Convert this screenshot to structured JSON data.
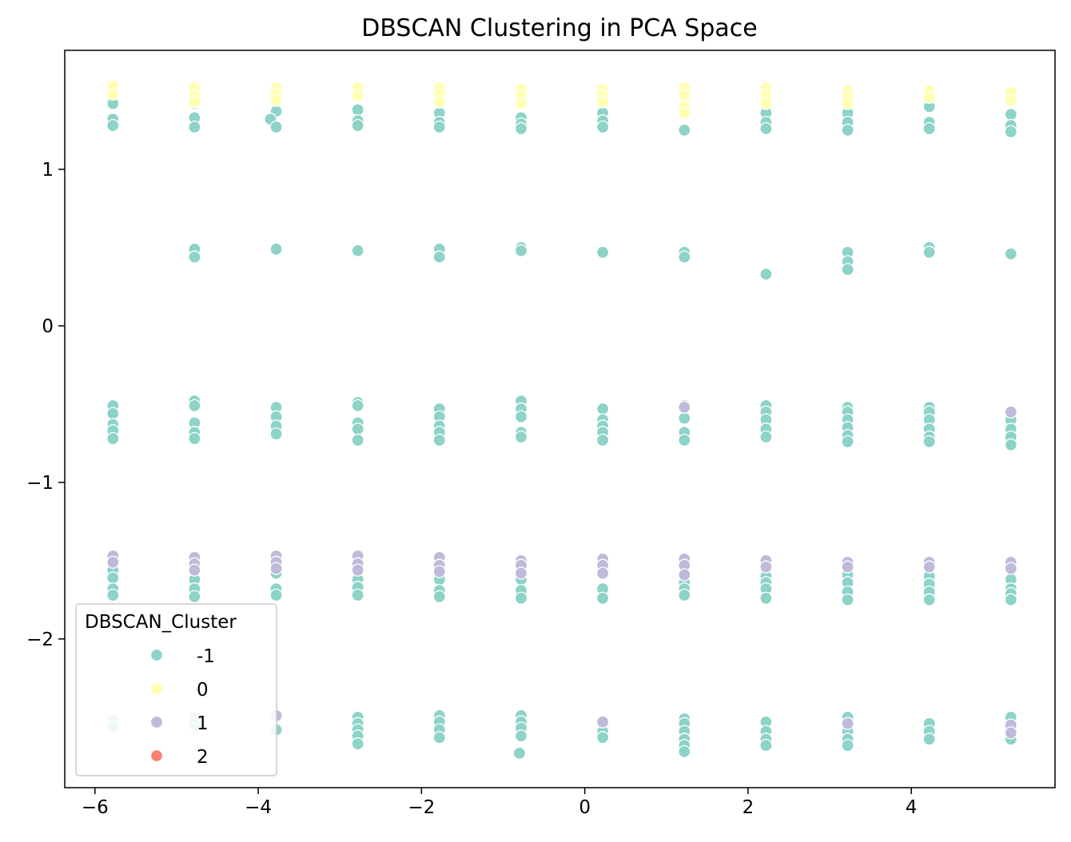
{
  "chart_data": {
    "type": "scatter",
    "title": "DBSCAN Clustering in PCA Space",
    "xlabel": "",
    "ylabel": "",
    "xlim": [
      -6.37,
      5.76
    ],
    "ylim": [
      -2.95,
      1.76
    ],
    "x_ticks": [
      -6,
      -4,
      -2,
      0,
      2,
      4
    ],
    "x_tick_labels": [
      "−6",
      "−4",
      "−2",
      "0",
      "2",
      "4"
    ],
    "y_ticks": [
      -2,
      -1,
      0,
      1
    ],
    "y_tick_labels": [
      "−2",
      "−1",
      "0",
      "1"
    ],
    "grid": false,
    "legend": {
      "title": "DBSCAN_Cluster",
      "placement": "lower-left",
      "entries": [
        {
          "label": "-1",
          "color": "#8dd3c7"
        },
        {
          "label": "0",
          "color": "#ffffb3"
        },
        {
          "label": "1",
          "color": "#bebada"
        },
        {
          "label": "2",
          "color": "#fb8072"
        }
      ]
    },
    "series": [
      {
        "cluster": "-1",
        "color": "#8dd3c7",
        "points": [
          [
            -5.78,
            1.42
          ],
          [
            -5.78,
            1.32
          ],
          [
            -5.78,
            1.28
          ],
          [
            -4.78,
            1.42
          ],
          [
            -4.78,
            1.33
          ],
          [
            -4.78,
            1.27
          ],
          [
            -3.78,
            1.37
          ],
          [
            -3.85,
            1.32
          ],
          [
            -3.78,
            1.27
          ],
          [
            -2.78,
            1.38
          ],
          [
            -2.78,
            1.31
          ],
          [
            -2.78,
            1.28
          ],
          [
            -1.78,
            1.36
          ],
          [
            -1.78,
            1.3
          ],
          [
            -1.78,
            1.27
          ],
          [
            -0.78,
            1.33
          ],
          [
            -0.78,
            1.29
          ],
          [
            -0.78,
            1.26
          ],
          [
            0.22,
            1.36
          ],
          [
            0.22,
            1.31
          ],
          [
            0.22,
            1.27
          ],
          [
            1.22,
            1.25
          ],
          [
            2.22,
            1.36
          ],
          [
            2.22,
            1.3
          ],
          [
            2.22,
            1.26
          ],
          [
            3.22,
            1.36
          ],
          [
            3.22,
            1.3
          ],
          [
            3.22,
            1.25
          ],
          [
            4.22,
            1.4
          ],
          [
            4.22,
            1.3
          ],
          [
            4.22,
            1.26
          ],
          [
            5.22,
            1.35
          ],
          [
            5.22,
            1.28
          ],
          [
            5.22,
            1.24
          ],
          [
            -4.78,
            0.49
          ],
          [
            -4.78,
            0.44
          ],
          [
            -3.78,
            0.49
          ],
          [
            -2.78,
            0.48
          ],
          [
            -1.78,
            0.49
          ],
          [
            -1.78,
            0.44
          ],
          [
            -0.78,
            0.5
          ],
          [
            -0.78,
            0.48
          ],
          [
            0.22,
            0.47
          ],
          [
            1.22,
            0.47
          ],
          [
            1.22,
            0.44
          ],
          [
            2.22,
            0.33
          ],
          [
            3.22,
            0.47
          ],
          [
            3.22,
            0.41
          ],
          [
            3.22,
            0.36
          ],
          [
            4.22,
            0.5
          ],
          [
            4.22,
            0.47
          ],
          [
            5.22,
            0.46
          ],
          [
            -5.78,
            -0.51
          ],
          [
            -5.78,
            -0.56
          ],
          [
            -5.78,
            -0.63
          ],
          [
            -5.78,
            -0.67
          ],
          [
            -5.78,
            -0.72
          ],
          [
            -4.78,
            -0.48
          ],
          [
            -4.78,
            -0.51
          ],
          [
            -4.78,
            -0.62
          ],
          [
            -4.78,
            -0.68
          ],
          [
            -4.78,
            -0.72
          ],
          [
            -3.78,
            -0.52
          ],
          [
            -3.78,
            -0.58
          ],
          [
            -3.78,
            -0.64
          ],
          [
            -3.78,
            -0.69
          ],
          [
            -2.78,
            -0.49
          ],
          [
            -2.78,
            -0.51
          ],
          [
            -2.78,
            -0.62
          ],
          [
            -2.78,
            -0.66
          ],
          [
            -2.78,
            -0.73
          ],
          [
            -1.78,
            -0.53
          ],
          [
            -1.78,
            -0.58
          ],
          [
            -1.78,
            -0.64
          ],
          [
            -1.78,
            -0.68
          ],
          [
            -1.78,
            -0.73
          ],
          [
            -0.78,
            -0.48
          ],
          [
            -0.78,
            -0.53
          ],
          [
            -0.78,
            -0.58
          ],
          [
            -0.78,
            -0.68
          ],
          [
            -0.78,
            -0.71
          ],
          [
            0.22,
            -0.53
          ],
          [
            0.22,
            -0.6
          ],
          [
            0.22,
            -0.64
          ],
          [
            0.22,
            -0.68
          ],
          [
            0.22,
            -0.73
          ],
          [
            1.22,
            -0.51
          ],
          [
            1.22,
            -0.59
          ],
          [
            1.22,
            -0.68
          ],
          [
            1.22,
            -0.73
          ],
          [
            2.22,
            -0.51
          ],
          [
            2.22,
            -0.55
          ],
          [
            2.22,
            -0.6
          ],
          [
            2.22,
            -0.66
          ],
          [
            2.22,
            -0.71
          ],
          [
            3.22,
            -0.52
          ],
          [
            3.22,
            -0.55
          ],
          [
            3.22,
            -0.6
          ],
          [
            3.22,
            -0.65
          ],
          [
            3.22,
            -0.7
          ],
          [
            3.22,
            -0.74
          ],
          [
            4.22,
            -0.52
          ],
          [
            4.22,
            -0.55
          ],
          [
            4.22,
            -0.6
          ],
          [
            4.22,
            -0.66
          ],
          [
            4.22,
            -0.71
          ],
          [
            4.22,
            -0.74
          ],
          [
            5.22,
            -0.6
          ],
          [
            5.22,
            -0.66
          ],
          [
            5.22,
            -0.71
          ],
          [
            5.22,
            -0.76
          ],
          [
            -5.78,
            -1.56
          ],
          [
            -5.78,
            -1.61
          ],
          [
            -5.78,
            -1.68
          ],
          [
            -5.78,
            -1.72
          ],
          [
            -4.78,
            -1.62
          ],
          [
            -4.78,
            -1.68
          ],
          [
            -4.78,
            -1.73
          ],
          [
            -3.78,
            -1.58
          ],
          [
            -3.78,
            -1.68
          ],
          [
            -3.78,
            -1.72
          ],
          [
            -2.78,
            -1.57
          ],
          [
            -2.78,
            -1.62
          ],
          [
            -2.78,
            -1.67
          ],
          [
            -2.78,
            -1.72
          ],
          [
            -1.78,
            -1.62
          ],
          [
            -1.78,
            -1.69
          ],
          [
            -1.78,
            -1.73
          ],
          [
            -0.78,
            -1.62
          ],
          [
            -0.78,
            -1.69
          ],
          [
            -0.78,
            -1.74
          ],
          [
            0.22,
            -1.58
          ],
          [
            0.22,
            -1.68
          ],
          [
            0.22,
            -1.74
          ],
          [
            1.22,
            -1.64
          ],
          [
            1.22,
            -1.68
          ],
          [
            1.22,
            -1.72
          ],
          [
            2.22,
            -1.6
          ],
          [
            2.22,
            -1.64
          ],
          [
            2.22,
            -1.68
          ],
          [
            2.22,
            -1.74
          ],
          [
            3.22,
            -1.59
          ],
          [
            3.22,
            -1.64
          ],
          [
            3.22,
            -1.7
          ],
          [
            3.22,
            -1.75
          ],
          [
            4.22,
            -1.6
          ],
          [
            4.22,
            -1.65
          ],
          [
            4.22,
            -1.7
          ],
          [
            4.22,
            -1.75
          ],
          [
            5.22,
            -1.62
          ],
          [
            5.22,
            -1.68
          ],
          [
            5.22,
            -1.71
          ],
          [
            5.22,
            -1.75
          ],
          [
            -5.78,
            -2.52
          ],
          [
            -5.78,
            -2.56
          ],
          [
            -4.78,
            -2.55
          ],
          [
            -3.78,
            -2.58
          ],
          [
            -2.78,
            -2.5
          ],
          [
            -2.78,
            -2.54
          ],
          [
            -2.78,
            -2.58
          ],
          [
            -2.78,
            -2.62
          ],
          [
            -2.78,
            -2.67
          ],
          [
            -1.78,
            -2.49
          ],
          [
            -1.78,
            -2.53
          ],
          [
            -1.78,
            -2.58
          ],
          [
            -1.78,
            -2.63
          ],
          [
            -0.78,
            -2.49
          ],
          [
            -0.78,
            -2.53
          ],
          [
            -0.78,
            -2.57
          ],
          [
            -0.78,
            -2.62
          ],
          [
            -0.8,
            -2.73
          ],
          [
            0.22,
            -2.59
          ],
          [
            0.22,
            -2.63
          ],
          [
            1.22,
            -2.51
          ],
          [
            1.22,
            -2.54
          ],
          [
            1.22,
            -2.59
          ],
          [
            1.22,
            -2.64
          ],
          [
            1.22,
            -2.68
          ],
          [
            1.22,
            -2.72
          ],
          [
            2.22,
            -2.53
          ],
          [
            2.22,
            -2.59
          ],
          [
            2.22,
            -2.64
          ],
          [
            2.22,
            -2.68
          ],
          [
            3.22,
            -2.5
          ],
          [
            3.22,
            -2.55
          ],
          [
            3.22,
            -2.59
          ],
          [
            3.22,
            -2.64
          ],
          [
            3.22,
            -2.68
          ],
          [
            4.22,
            -2.54
          ],
          [
            4.22,
            -2.59
          ],
          [
            4.22,
            -2.64
          ],
          [
            5.22,
            -2.5
          ],
          [
            5.22,
            -2.59
          ],
          [
            5.22,
            -2.64
          ]
        ]
      },
      {
        "cluster": "0",
        "color": "#ffffb3",
        "points": [
          [
            -5.78,
            1.53
          ],
          [
            -5.78,
            1.48
          ],
          [
            -4.78,
            1.52
          ],
          [
            -4.78,
            1.47
          ],
          [
            -4.78,
            1.43
          ],
          [
            -3.78,
            1.52
          ],
          [
            -3.78,
            1.48
          ],
          [
            -3.78,
            1.44
          ],
          [
            -2.78,
            1.52
          ],
          [
            -2.78,
            1.47
          ],
          [
            -1.78,
            1.52
          ],
          [
            -1.78,
            1.48
          ],
          [
            -1.78,
            1.43
          ],
          [
            -0.78,
            1.51
          ],
          [
            -0.78,
            1.47
          ],
          [
            -0.78,
            1.42
          ],
          [
            0.22,
            1.51
          ],
          [
            0.22,
            1.47
          ],
          [
            0.22,
            1.43
          ],
          [
            1.22,
            1.52
          ],
          [
            1.22,
            1.47
          ],
          [
            1.22,
            1.4
          ],
          [
            1.22,
            1.36
          ],
          [
            2.22,
            1.52
          ],
          [
            2.22,
            1.47
          ],
          [
            2.22,
            1.42
          ],
          [
            3.22,
            1.5
          ],
          [
            3.22,
            1.46
          ],
          [
            3.22,
            1.42
          ],
          [
            4.22,
            1.5
          ],
          [
            4.22,
            1.46
          ],
          [
            5.22,
            1.49
          ],
          [
            5.22,
            1.44
          ]
        ]
      },
      {
        "cluster": "1",
        "color": "#bebada",
        "points": [
          [
            -5.78,
            -1.47
          ],
          [
            -5.78,
            -1.51
          ],
          [
            -4.78,
            -1.48
          ],
          [
            -4.78,
            -1.52
          ],
          [
            -4.78,
            -1.56
          ],
          [
            -3.78,
            -1.47
          ],
          [
            -3.78,
            -1.51
          ],
          [
            -3.78,
            -1.55
          ],
          [
            -2.78,
            -1.47
          ],
          [
            -2.78,
            -1.52
          ],
          [
            -2.78,
            -1.56
          ],
          [
            -1.78,
            -1.48
          ],
          [
            -1.78,
            -1.53
          ],
          [
            -1.78,
            -1.57
          ],
          [
            -0.78,
            -1.5
          ],
          [
            -0.78,
            -1.53
          ],
          [
            -0.78,
            -1.58
          ],
          [
            0.22,
            -1.49
          ],
          [
            0.22,
            -1.53
          ],
          [
            0.22,
            -1.58
          ],
          [
            1.22,
            -1.49
          ],
          [
            1.22,
            -1.53
          ],
          [
            1.22,
            -1.59
          ],
          [
            2.22,
            -1.5
          ],
          [
            2.22,
            -1.54
          ],
          [
            3.22,
            -1.51
          ],
          [
            3.22,
            -1.54
          ],
          [
            4.22,
            -1.51
          ],
          [
            4.22,
            -1.54
          ],
          [
            5.22,
            -1.51
          ],
          [
            5.22,
            -1.55
          ],
          [
            1.22,
            -0.52
          ],
          [
            5.22,
            -0.55
          ],
          [
            -4.78,
            -2.5
          ],
          [
            -3.78,
            -2.49
          ],
          [
            0.22,
            -2.53
          ],
          [
            3.22,
            -2.54
          ],
          [
            5.22,
            -2.55
          ],
          [
            5.22,
            -2.6
          ]
        ]
      },
      {
        "cluster": "2",
        "color": "#fb8072",
        "points": []
      }
    ]
  }
}
